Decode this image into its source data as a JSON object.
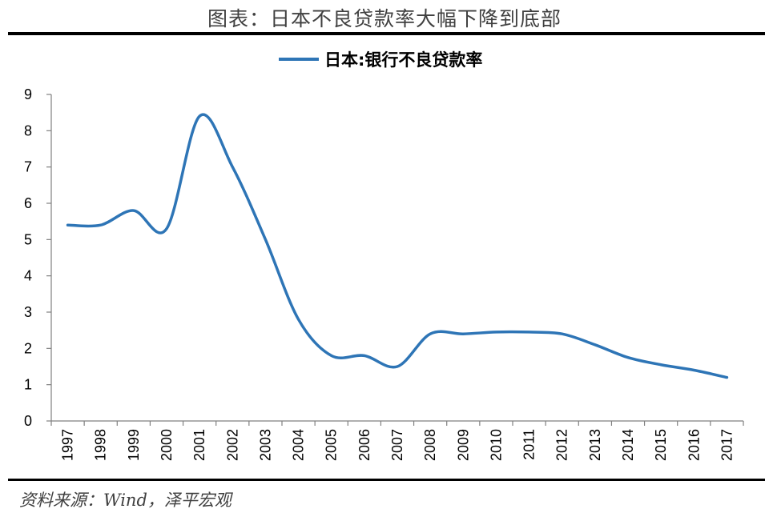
{
  "page": {
    "title": "图表：日本不良贷款率大幅下降到底部",
    "source": "资料来源：Wind，泽平宏观"
  },
  "chart_data": {
    "type": "line",
    "x": [
      "1997",
      "1998",
      "1999",
      "2000",
      "2001",
      "2002",
      "2003",
      "2004",
      "2005",
      "2006",
      "2007",
      "2008",
      "2009",
      "2010",
      "2011",
      "2012",
      "2013",
      "2014",
      "2015",
      "2016",
      "2017"
    ],
    "series": [
      {
        "name": "日本:银行不良贷款率",
        "color": "#2e75b6",
        "values": [
          5.4,
          5.4,
          5.8,
          5.3,
          8.4,
          7.0,
          5.0,
          2.8,
          1.8,
          1.8,
          1.5,
          2.4,
          2.4,
          2.45,
          2.45,
          2.4,
          2.1,
          1.75,
          1.55,
          1.4,
          1.2
        ]
      }
    ],
    "ylim": [
      0,
      9
    ],
    "yticks": [
      0,
      1,
      2,
      3,
      4,
      5,
      6,
      7,
      8,
      9
    ],
    "legend": "top-center",
    "grid": false,
    "smooth": true
  }
}
